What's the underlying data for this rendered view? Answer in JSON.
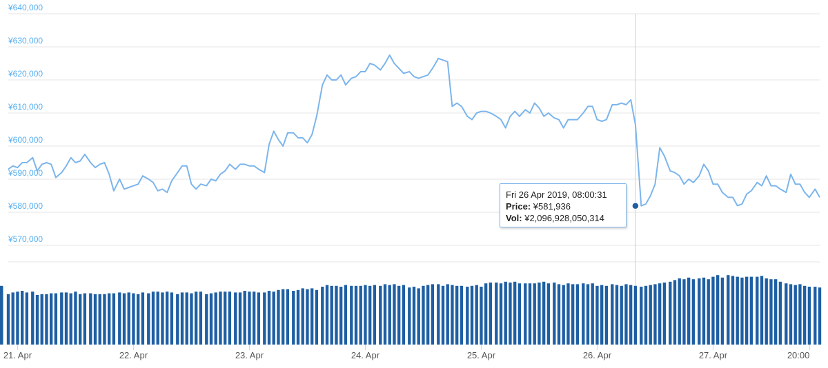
{
  "chart_data": {
    "type": "line",
    "price_axis": {
      "ylim": [
        570000,
        640000
      ],
      "tick_labels": [
        "¥570,000",
        "¥580,000",
        "¥590,000",
        "¥600,000",
        "¥610,000",
        "¥620,000",
        "¥630,000",
        "¥640,000"
      ],
      "tick_values": [
        570000,
        580000,
        590000,
        600000,
        610000,
        620000,
        630000,
        640000
      ]
    },
    "x_ticks": [
      {
        "label": "21. Apr",
        "day": 21
      },
      {
        "label": "22. Apr",
        "day": 22
      },
      {
        "label": "23. Apr",
        "day": 23
      },
      {
        "label": "24. Apr",
        "day": 24
      },
      {
        "label": "25. Apr",
        "day": 25
      },
      {
        "label": "26. Apr",
        "day": 26
      },
      {
        "label": "27. Apr",
        "day": 27
      },
      {
        "label": "20:00",
        "day": 27.833
      }
    ],
    "x_range_days": [
      20.92,
      27.92
    ],
    "colors": {
      "price_line": "#7cb5ec",
      "volume_bar": "#1e5fa3",
      "crosshair": "#cccccc",
      "marker": "#1e5fa3"
    },
    "price_series": {
      "x_days": [
        20.92,
        20.96,
        21.0,
        21.04,
        21.08,
        21.13,
        21.17,
        21.21,
        21.25,
        21.29,
        21.33,
        21.38,
        21.42,
        21.46,
        21.5,
        21.54,
        21.58,
        21.63,
        21.67,
        21.71,
        21.75,
        21.79,
        21.83,
        21.88,
        21.92,
        21.96,
        22.0,
        22.04,
        22.08,
        22.13,
        22.17,
        22.21,
        22.25,
        22.29,
        22.33,
        22.38,
        22.42,
        22.46,
        22.5,
        22.54,
        22.58,
        22.63,
        22.67,
        22.71,
        22.75,
        22.79,
        22.83,
        22.88,
        22.92,
        22.96,
        23.0,
        23.04,
        23.08,
        23.13,
        23.17,
        23.21,
        23.25,
        23.29,
        23.33,
        23.38,
        23.42,
        23.46,
        23.5,
        23.54,
        23.58,
        23.63,
        23.67,
        23.71,
        23.75,
        23.79,
        23.83,
        23.88,
        23.92,
        23.96,
        24.0,
        24.04,
        24.08,
        24.13,
        24.17,
        24.21,
        24.25,
        24.29,
        24.33,
        24.38,
        24.42,
        24.46,
        24.5,
        24.54,
        24.58,
        24.63,
        24.67,
        24.71,
        24.75,
        24.79,
        24.83,
        24.88,
        24.92,
        24.96,
        25.0,
        25.04,
        25.08,
        25.13,
        25.17,
        25.21,
        25.25,
        25.29,
        25.33,
        25.38,
        25.42,
        25.46,
        25.5,
        25.54,
        25.58,
        25.63,
        25.67,
        25.71,
        25.75,
        25.79,
        25.83,
        25.88,
        25.92,
        25.96,
        26.0,
        26.04,
        26.08,
        26.13,
        26.17,
        26.21,
        26.25,
        26.29,
        26.33,
        26.38,
        26.42,
        26.46,
        26.5,
        26.54,
        26.58,
        26.63,
        26.67,
        26.71,
        26.75,
        26.79,
        26.83,
        26.88,
        26.92,
        26.96,
        27.0,
        27.04,
        27.08,
        27.13,
        27.17,
        27.21,
        27.25,
        27.29,
        27.33,
        27.38,
        27.42,
        27.46,
        27.5,
        27.54,
        27.58,
        27.63,
        27.67,
        27.71,
        27.75,
        27.79,
        27.83,
        27.88,
        27.92
      ],
      "price": [
        593000,
        594000,
        593500,
        595000,
        595000,
        596500,
        592500,
        594500,
        595000,
        594500,
        590500,
        592000,
        594000,
        596500,
        595000,
        595500,
        597500,
        595000,
        593500,
        594500,
        595000,
        591500,
        586500,
        590000,
        587000,
        587500,
        588000,
        588500,
        591000,
        590000,
        589000,
        586500,
        587000,
        586000,
        589500,
        592000,
        594000,
        594000,
        588500,
        587000,
        588500,
        588000,
        590000,
        589500,
        591500,
        592500,
        594500,
        593000,
        594500,
        594500,
        594000,
        594000,
        593000,
        592000,
        600500,
        604500,
        602000,
        600000,
        604000,
        604000,
        602500,
        602500,
        601000,
        603500,
        609000,
        618500,
        621500,
        620000,
        620000,
        621500,
        618500,
        620500,
        621000,
        622500,
        622500,
        625000,
        624500,
        623000,
        625000,
        627500,
        625000,
        623500,
        622000,
        622500,
        621000,
        620500,
        621000,
        621500,
        623500,
        626500,
        626000,
        625500,
        612000,
        613000,
        612000,
        609000,
        608000,
        610000,
        610500,
        610500,
        610000,
        609000,
        608000,
        605500,
        609000,
        610500,
        609000,
        611000,
        610000,
        613000,
        611500,
        609000,
        610000,
        608500,
        608000,
        605500,
        608000,
        608000,
        608000,
        610000,
        612000,
        612000,
        608000,
        607500,
        608000,
        612500,
        612500,
        613000,
        612500,
        614000,
        606500,
        581936,
        582500,
        585000,
        588500,
        599500,
        597000,
        592500,
        592000,
        591000,
        588500,
        590000,
        589000,
        591000,
        594500,
        592500,
        588500,
        588500,
        586000,
        584500,
        584500,
        582000,
        582500,
        585500,
        586500,
        589000,
        588000,
        591000,
        588000,
        588000,
        587000,
        586000,
        591500,
        588500,
        588500,
        586000,
        584500,
        587000,
        584500
      ],
      "volume_relative": [
        0.61,
        0.63,
        0.64,
        0.65,
        0.63,
        0.64,
        0.6,
        0.61,
        0.61,
        0.62,
        0.62,
        0.63,
        0.63,
        0.62,
        0.64,
        0.61,
        0.62,
        0.62,
        0.61,
        0.61,
        0.61,
        0.62,
        0.62,
        0.63,
        0.62,
        0.63,
        0.62,
        0.61,
        0.63,
        0.62,
        0.64,
        0.64,
        0.63,
        0.64,
        0.63,
        0.61,
        0.63,
        0.63,
        0.62,
        0.64,
        0.64,
        0.61,
        0.62,
        0.63,
        0.64,
        0.64,
        0.64,
        0.63,
        0.63,
        0.65,
        0.64,
        0.64,
        0.63,
        0.63,
        0.65,
        0.64,
        0.66,
        0.67,
        0.67,
        0.65,
        0.66,
        0.68,
        0.67,
        0.68,
        0.66,
        0.7,
        0.72,
        0.71,
        0.71,
        0.7,
        0.72,
        0.71,
        0.71,
        0.71,
        0.72,
        0.71,
        0.72,
        0.71,
        0.73,
        0.72,
        0.73,
        0.71,
        0.72,
        0.69,
        0.7,
        0.68,
        0.71,
        0.72,
        0.73,
        0.73,
        0.71,
        0.73,
        0.72,
        0.71,
        0.71,
        0.7,
        0.71,
        0.72,
        0.7,
        0.74,
        0.75,
        0.75,
        0.74,
        0.76,
        0.75,
        0.76,
        0.74,
        0.74,
        0.74,
        0.74,
        0.75,
        0.76,
        0.74,
        0.75,
        0.73,
        0.72,
        0.74,
        0.73,
        0.73,
        0.74,
        0.73,
        0.74,
        0.71,
        0.72,
        0.71,
        0.73,
        0.72,
        0.71,
        0.73,
        0.72,
        0.71,
        0.7,
        0.71,
        0.72,
        0.73,
        0.74,
        0.75,
        0.76,
        0.78,
        0.8,
        0.79,
        0.81,
        0.79,
        0.8,
        0.81,
        0.79,
        0.82,
        0.84,
        0.81,
        0.84,
        0.83,
        0.82,
        0.81,
        0.82,
        0.82,
        0.82,
        0.83,
        0.8,
        0.79,
        0.79,
        0.76,
        0.74,
        0.73,
        0.72,
        0.73,
        0.71,
        0.7,
        0.7,
        0.69,
        0.7,
        0.71,
        0.69,
        0.68,
        0.69,
        0.7
      ]
    },
    "hover": {
      "x_day": 26.33,
      "price": 581936,
      "tooltip": {
        "date": "Fri 26 Apr 2019, 08:00:31",
        "price_label": "Price:",
        "price_value": "¥581,936",
        "vol_label": "Vol:",
        "vol_value": "¥2,096,928,050,314"
      }
    }
  }
}
